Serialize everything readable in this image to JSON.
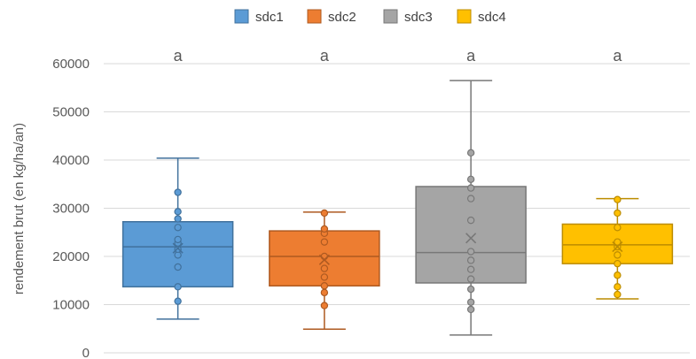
{
  "chart_data": {
    "type": "box",
    "ylabel": "rendement brut (en kg/ha/an)",
    "ylim": [
      0,
      60000
    ],
    "yticks": [
      0,
      10000,
      20000,
      30000,
      40000,
      50000,
      60000
    ],
    "ytick_labels": [
      "0",
      "10000",
      "20000",
      "30000",
      "40000",
      "50000",
      "60000"
    ],
    "grid": true,
    "legend_position": "top",
    "series": [
      {
        "name": "sdc1",
        "color": "#5B9BD5",
        "stroke": "#41719C",
        "min": 7000,
        "q1": 13700,
        "median": 22000,
        "q3": 27200,
        "max": 40400,
        "mean": 21700,
        "significance": "a",
        "points": [
          10700,
          13700,
          17800,
          20300,
          21500,
          22800,
          23500,
          26000,
          27800,
          29300,
          33300
        ]
      },
      {
        "name": "sdc2",
        "color": "#ED7D31",
        "stroke": "#AE5A21",
        "min": 4900,
        "q1": 13900,
        "median": 20000,
        "q3": 25300,
        "max": 29200,
        "mean": 19300,
        "significance": "a",
        "points": [
          9800,
          12500,
          13900,
          15700,
          17500,
          20000,
          23000,
          24800,
          25700,
          29000
        ]
      },
      {
        "name": "sdc3",
        "color": "#A5A5A5",
        "stroke": "#787878",
        "min": 3700,
        "q1": 14500,
        "median": 20800,
        "q3": 34500,
        "max": 56500,
        "mean": 23800,
        "significance": "a",
        "points": [
          9000,
          10500,
          13200,
          15300,
          17300,
          19200,
          21000,
          27500,
          32000,
          34200,
          36000,
          41500
        ]
      },
      {
        "name": "sdc4",
        "color": "#FFC000",
        "stroke": "#BC8C00",
        "min": 11200,
        "q1": 18500,
        "median": 22400,
        "q3": 26700,
        "max": 32000,
        "mean": 22000,
        "significance": "a",
        "points": [
          12100,
          13700,
          16100,
          18500,
          20300,
          22000,
          23000,
          26000,
          29000,
          31800
        ]
      }
    ]
  }
}
